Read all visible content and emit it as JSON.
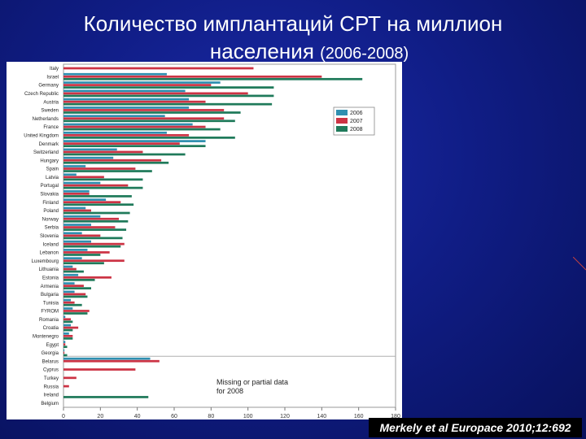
{
  "slide": {
    "title_line1": "Количество имплантаций СРТ на миллион",
    "title_line2": "населения",
    "title_years": "(2006-2008)",
    "citation": "Merkely et al Europace 2010;12:692"
  },
  "chart_data": {
    "type": "bar",
    "orientation": "horizontal",
    "categories": [
      "Italy",
      "Israel",
      "Germany",
      "Czech Republic",
      "Austria",
      "Sweden",
      "Netherlands",
      "France",
      "United Kingdom",
      "Denmark",
      "Switzerland",
      "Hungary",
      "Spain",
      "Latvia",
      "Portugal",
      "Slovakia",
      "Finland",
      "Poland",
      "Norway",
      "Serbia",
      "Slovenia",
      "Iceland",
      "Lebanon",
      "Luxembourg",
      "Lithuania",
      "Estonia",
      "Armenia",
      "Bulgaria",
      "Tunisia",
      "FYROM",
      "Romania",
      "Croatia",
      "Montenegro",
      "Egypt",
      "Georgia",
      "Belarus",
      "Cyprus",
      "Turkey",
      "Russia",
      "Ireland",
      "Belgium"
    ],
    "series": [
      {
        "name": "2006",
        "color": "#2f8fb0",
        "values": [
          null,
          56,
          85,
          66,
          68,
          68,
          55,
          70,
          56,
          77,
          29,
          27,
          12,
          7,
          20,
          14,
          23,
          12,
          20,
          15,
          10,
          15,
          13,
          10,
          5,
          8,
          6,
          6,
          4,
          5,
          1,
          4,
          3,
          1,
          0.5,
          47,
          null,
          null,
          null,
          null,
          null
        ]
      },
      {
        "name": "2007",
        "color": "#cc3344",
        "values": [
          103,
          140,
          80,
          100,
          77,
          87,
          87,
          77,
          68,
          63,
          43,
          53,
          39,
          22,
          35,
          14,
          31,
          15,
          30,
          28,
          20,
          33,
          25,
          33,
          7,
          26,
          11,
          12,
          6,
          14,
          4,
          8,
          5,
          1,
          0.5,
          52,
          39,
          7,
          3,
          null,
          null
        ]
      },
      {
        "name": "2008",
        "color": "#1f7a5a",
        "values": [
          null,
          162,
          114,
          114,
          113,
          96,
          93,
          85,
          93,
          77,
          66,
          57,
          48,
          43,
          43,
          37,
          38,
          36,
          35,
          34,
          32,
          31,
          20,
          22,
          11,
          17,
          15,
          13,
          10,
          13,
          5,
          5,
          5,
          2,
          2,
          null,
          null,
          null,
          null,
          46,
          null
        ]
      }
    ],
    "x_ticks": [
      0,
      20,
      40,
      60,
      80,
      100,
      120,
      140,
      160,
      180
    ],
    "xlim": [
      0,
      180
    ],
    "legend_placement": "top-right",
    "annotation": [
      "Missing or partial data",
      "for 2008"
    ]
  }
}
